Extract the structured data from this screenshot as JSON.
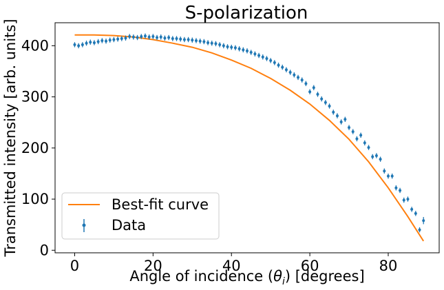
{
  "chart_data": {
    "type": "scatter",
    "title": "S-polarization",
    "xlabel_prefix": "Angle of incidence (",
    "xlabel_theta": "θ",
    "xlabel_sub": "i",
    "xlabel_suffix": ") [degrees]",
    "ylabel": "Transmitted intensity [arb. units]",
    "xlim": [
      -5,
      93
    ],
    "ylim": [
      -5,
      445
    ],
    "xticks": [
      0,
      20,
      40,
      60,
      80
    ],
    "yticks": [
      0,
      100,
      200,
      300,
      400
    ],
    "legend_position": "lower-left",
    "colors": {
      "data": "#1f77b4",
      "fit": "#ff7f0e"
    },
    "series": [
      {
        "name": "Data",
        "kind": "errorbar",
        "x": [
          0,
          1,
          2,
          3,
          4,
          5,
          6,
          7,
          8,
          9,
          10,
          11,
          12,
          13,
          14,
          15,
          16,
          17,
          18,
          19,
          20,
          21,
          22,
          23,
          24,
          25,
          26,
          27,
          28,
          29,
          30,
          31,
          32,
          33,
          34,
          35,
          36,
          37,
          38,
          39,
          40,
          41,
          42,
          43,
          44,
          45,
          46,
          47,
          48,
          49,
          50,
          51,
          52,
          53,
          54,
          55,
          56,
          57,
          58,
          59,
          60,
          61,
          62,
          63,
          64,
          65,
          66,
          67,
          68,
          69,
          70,
          71,
          72,
          73,
          74,
          75,
          76,
          77,
          78,
          79,
          80,
          81,
          82,
          83,
          84,
          85,
          86,
          87,
          88,
          89
        ],
        "y": [
          402,
          400,
          402,
          405,
          407,
          406,
          408,
          410,
          409,
          411,
          412,
          413,
          414,
          415,
          418,
          417,
          416,
          418,
          419,
          417,
          418,
          416,
          417,
          415,
          416,
          414,
          414,
          413,
          412,
          412,
          411,
          410,
          409,
          408,
          406,
          405,
          404,
          402,
          400,
          398,
          397,
          396,
          394,
          392,
          390,
          387,
          384,
          381,
          378,
          375,
          371,
          367,
          362,
          358,
          353,
          348,
          343,
          338,
          333,
          326,
          310,
          318,
          305,
          296,
          289,
          282,
          270,
          263,
          251,
          256,
          240,
          232,
          218,
          225,
          210,
          201,
          183,
          185,
          178,
          155,
          145,
          145,
          122,
          117,
          98,
          100,
          80,
          72,
          40,
          58
        ],
        "err": [
          5,
          5,
          5,
          5,
          5,
          5,
          5,
          5,
          5,
          5,
          5,
          5,
          5,
          5,
          5,
          5,
          5,
          5,
          5,
          5,
          5,
          5,
          5,
          5,
          5,
          5,
          5,
          5,
          5,
          5,
          5,
          5,
          5,
          5,
          5,
          5,
          5,
          5,
          5,
          5,
          5,
          5,
          5,
          5,
          5,
          5,
          5,
          5,
          5,
          5,
          5,
          5,
          5,
          5,
          5,
          5,
          5,
          5,
          5,
          5,
          5,
          5,
          5,
          5,
          5,
          5,
          5,
          5,
          5,
          5,
          5,
          5,
          5,
          5,
          5,
          5,
          5,
          5,
          5,
          5,
          5,
          5,
          5,
          5,
          5,
          5,
          5,
          5,
          5,
          7
        ]
      },
      {
        "name": "Best-fit curve",
        "kind": "line",
        "x": [
          0,
          5,
          10,
          15,
          20,
          25,
          30,
          35,
          40,
          45,
          50,
          55,
          60,
          65,
          70,
          75,
          80,
          85,
          89
        ],
        "y": [
          421,
          421,
          420,
          417,
          412,
          405,
          397,
          386,
          372,
          356,
          336,
          313,
          286,
          254,
          217,
          173,
          122,
          66,
          18
        ]
      }
    ]
  }
}
